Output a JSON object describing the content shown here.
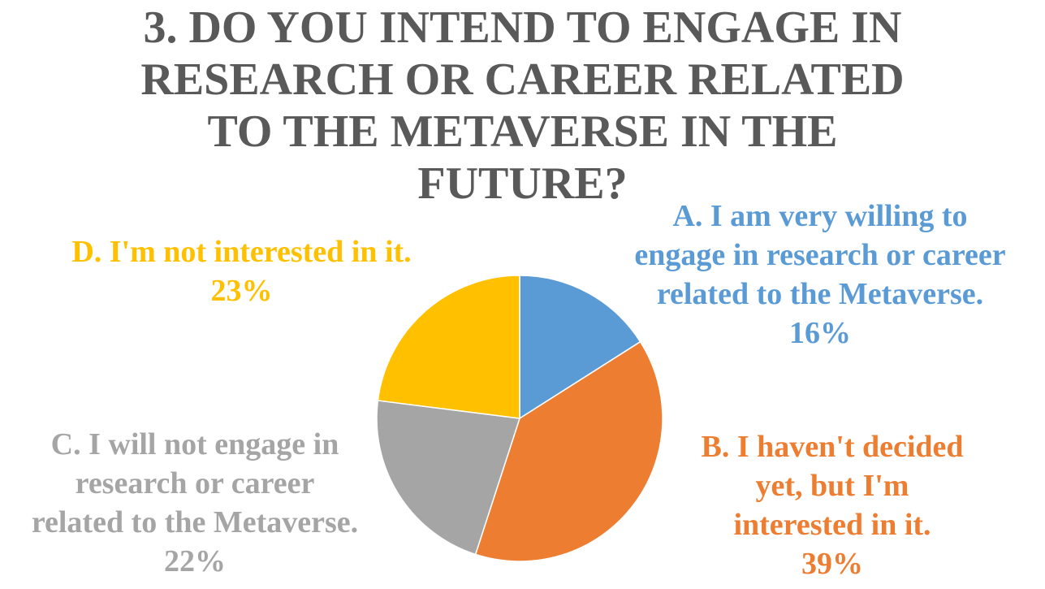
{
  "chart_data": {
    "type": "pie",
    "title_lines": [
      "3. DO YOU INTEND TO ENGAGE IN",
      "RESEARCH OR CAREER RELATED",
      "TO THE METAVERSE IN THE",
      "FUTURE?"
    ],
    "slices": [
      {
        "key": "a",
        "label_lines": [
          "A. I am very willing to",
          "engage in research or career",
          "related to the Metaverse."
        ],
        "value": 16,
        "value_text": "16%",
        "color": "#5b9bd5"
      },
      {
        "key": "b",
        "label_lines": [
          "B. I haven't decided",
          "yet, but I'm",
          "interested in it."
        ],
        "value": 39,
        "value_text": "39%",
        "color": "#ed7d31"
      },
      {
        "key": "c",
        "label_lines": [
          "C. I will not engage in",
          "research or career",
          "related to the Metaverse."
        ],
        "value": 22,
        "value_text": "22%",
        "color": "#a5a5a5"
      },
      {
        "key": "d",
        "label_lines": [
          "D. I'm not interested in it."
        ],
        "value": 23,
        "value_text": "23%",
        "color": "#ffc000"
      }
    ],
    "start_angle": "12 o'clock",
    "direction": "clockwise",
    "legend": "none (data labels next to slices)"
  }
}
